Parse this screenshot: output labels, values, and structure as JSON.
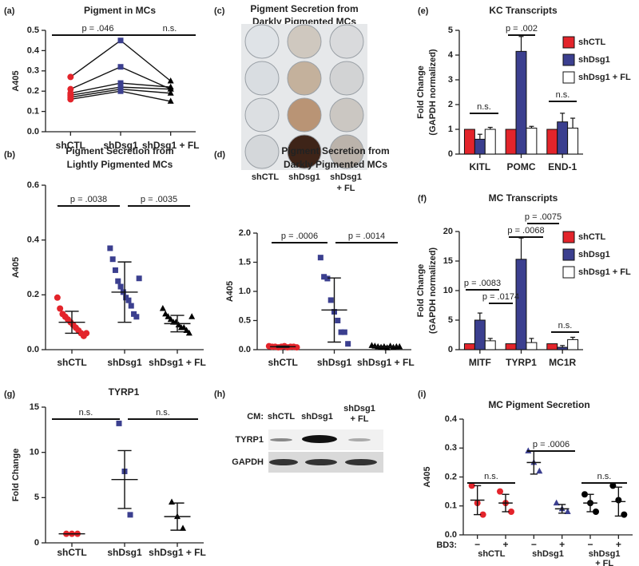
{
  "chart_data": [
    {
      "panel": "(a)",
      "type": "line",
      "title": [
        "Pigment in MCs"
      ],
      "ylabel": [
        "A405"
      ],
      "categories": [
        "shCTL",
        "shDsg1",
        "shDsg1 + FL"
      ],
      "colors": [
        "#e3242b",
        "#3b3f8f",
        "#000000"
      ],
      "markers": [
        "circle",
        "square",
        "triangle"
      ],
      "series": [
        {
          "values": [
            0.27,
            0.45,
            0.25
          ]
        },
        {
          "values": [
            0.21,
            0.32,
            0.21
          ]
        },
        {
          "values": [
            0.19,
            0.24,
            0.22
          ]
        },
        {
          "values": [
            0.18,
            0.22,
            0.21
          ]
        },
        {
          "values": [
            0.17,
            0.21,
            0.19
          ]
        },
        {
          "values": [
            0.16,
            0.2,
            0.15
          ]
        }
      ],
      "ylim": [
        0,
        0.5
      ],
      "yticks": [
        {
          "value": 0,
          "label": "0.0"
        },
        0.1,
        0.2,
        0.3,
        0.4,
        0.5
      ],
      "annotations": [
        "p = .046",
        "n.s."
      ]
    },
    {
      "panel": "(b)",
      "type": "dot",
      "title": [
        "Pigment Secretion from",
        "Lightly Pigmented MCs"
      ],
      "ylabel": [
        "A405"
      ],
      "categories": [
        "shCTL",
        "shDsg1",
        "shDsg1 + FL"
      ],
      "colors": [
        "#e3242b",
        "#3b3f8f",
        "#000000"
      ],
      "markers": [
        "circle",
        "square",
        "triangle"
      ],
      "points": [
        [
          0.19,
          0.15,
          0.13,
          0.12,
          0.11,
          0.1,
          0.09,
          0.08,
          0.07,
          0.06,
          0.05,
          0.06
        ],
        [
          0.37,
          0.33,
          0.29,
          0.25,
          0.23,
          0.21,
          0.19,
          0.18,
          0.16,
          0.13,
          0.12,
          0.26
        ],
        [
          0.15,
          0.13,
          0.12,
          0.11,
          0.1,
          0.1,
          0.09,
          0.08,
          0.08,
          0.07,
          0.06,
          0.12
        ]
      ],
      "means": [
        0.1,
        0.21,
        0.095
      ],
      "errors": [
        0.04,
        0.11,
        0.03
      ],
      "ylim": [
        0,
        0.6
      ],
      "yticks": [
        {
          "value": 0,
          "label": "0.0"
        },
        0.2,
        0.4,
        0.6
      ],
      "annotations": [
        "p = .0038",
        "p = .0035"
      ]
    },
    {
      "panel": "(d)",
      "type": "dot",
      "title": [
        "Pigment Secretion from",
        "Darkly Pigmented MCs"
      ],
      "ylabel": [
        "A405"
      ],
      "categories": [
        "shCTL",
        "shDsg1",
        "shDsg1 + FL"
      ],
      "colors": [
        "#e3242b",
        "#3b3f8f",
        "#000000"
      ],
      "markers": [
        "circle",
        "square",
        "triangle"
      ],
      "points": [
        [
          0.06,
          0.05,
          0.05,
          0.04,
          0.05,
          0.06,
          0.04,
          0.05,
          0.05,
          0.04
        ],
        [
          1.58,
          1.25,
          1.22,
          0.85,
          0.65,
          0.5,
          0.3,
          0.3,
          0.1
        ],
        [
          0.07,
          0.06,
          0.05,
          0.04,
          0.05,
          0.03,
          0.06,
          0.04,
          0.05,
          0.05
        ]
      ],
      "means": [
        0.05,
        0.68,
        0.05
      ],
      "errors": [
        0.01,
        0.55,
        0.01
      ],
      "ylim": [
        0,
        2
      ],
      "yticks": [
        {
          "value": 0,
          "label": "0.0"
        },
        0.5,
        {
          "value": 1,
          "label": "1.0"
        },
        1.5,
        {
          "value": 2,
          "label": "2.0"
        }
      ],
      "annotations": [
        "p = .0006",
        "p = .0014"
      ]
    },
    {
      "panel": "(e)",
      "type": "bar",
      "title": [
        "KC Transcripts"
      ],
      "ylabel": [
        "Fold Change",
        "(GAPDH normalized)"
      ],
      "categories": [
        "KITL",
        "POMC",
        "END-1"
      ],
      "series": [
        {
          "name": "shCTL",
          "color": "#e3242b",
          "values": [
            1,
            1,
            1
          ]
        },
        {
          "name": "shDsg1",
          "color": "#3b3f8f",
          "values": [
            0.6,
            4.15,
            1.3
          ],
          "errors": [
            0.2,
            0.6,
            0.35
          ]
        },
        {
          "name": "shDsg1 + FL",
          "color": "#ffffff",
          "values": [
            1.0,
            1.05,
            1.05
          ],
          "errors": [
            0.08,
            0.07,
            0.4
          ]
        }
      ],
      "ylim": [
        0,
        5
      ],
      "yticks": [
        0,
        1,
        2,
        3,
        4,
        5
      ],
      "legend": "top-right",
      "annotations": [
        "n.s.",
        "p = .002",
        "n.s."
      ]
    },
    {
      "panel": "(f)",
      "type": "bar",
      "title": [
        "MC Transcripts"
      ],
      "ylabel": [
        "Fold Change",
        "(GAPDH normalized)"
      ],
      "categories": [
        "MITF",
        "TYRP1",
        "MC1R"
      ],
      "series": [
        {
          "name": "shCTL",
          "color": "#e3242b",
          "values": [
            1,
            1,
            1
          ]
        },
        {
          "name": "shDsg1",
          "color": "#3b3f8f",
          "values": [
            5.0,
            15.3,
            0.4
          ],
          "errors": [
            1.2,
            3.6,
            0.3
          ]
        },
        {
          "name": "shDsg1 + FL",
          "color": "#ffffff",
          "values": [
            1.5,
            1.2,
            1.7
          ],
          "errors": [
            0.4,
            0.7,
            0.4
          ]
        }
      ],
      "ylim": [
        0,
        20
      ],
      "yticks": [
        0,
        5,
        10,
        15,
        20
      ],
      "legend": "top-right",
      "annotations": [
        "p = .0083",
        "p = .0174",
        "p = .0068",
        "p = .0075",
        "n.s."
      ]
    },
    {
      "panel": "(g)",
      "type": "dot",
      "title": [
        "TYRP1"
      ],
      "ylabel": [
        "Fold Change"
      ],
      "categories": [
        "shCTL",
        "shDsg1",
        "shDsg1 + FL"
      ],
      "colors": [
        "#e3242b",
        "#3b3f8f",
        "#000000"
      ],
      "markers": [
        "circle",
        "square",
        "triangle"
      ],
      "points": [
        [
          1,
          1,
          1
        ],
        [
          13.2,
          7.9,
          3.1
        ],
        [
          4.5,
          2.9,
          1.6
        ]
      ],
      "means": [
        1,
        7.0,
        2.9
      ],
      "errors": [
        0,
        3.2,
        1.5
      ],
      "ylim": [
        0,
        15
      ],
      "yticks": [
        0,
        5,
        10,
        15
      ],
      "annotations": [
        "n.s.",
        "n.s."
      ]
    },
    {
      "panel": "(i)",
      "type": "dot",
      "title": [
        "MC Pigment Secretion"
      ],
      "ylabel": [
        "A405"
      ],
      "x_prefix": "BD3:",
      "categories": [
        "−",
        "+",
        "−",
        "+",
        "−",
        "+"
      ],
      "groups": [
        [
          "shCTL"
        ],
        [
          "shDsg1"
        ],
        [
          "shDsg1",
          "+ FL"
        ]
      ],
      "colors": [
        "#e3242b",
        "#e3242b",
        "#3b3f8f",
        "#3b3f8f",
        "#000000",
        "#000000"
      ],
      "markers": [
        "circle",
        "circle",
        "triangle",
        "triangle",
        "circle",
        "circle"
      ],
      "points": [
        [
          0.17,
          0.11,
          0.07
        ],
        [
          0.15,
          0.11,
          0.08
        ],
        [
          0.29,
          0.25,
          0.22
        ],
        [
          0.11,
          0.09,
          0.08
        ],
        [
          0.14,
          0.11,
          0.08
        ],
        [
          0.17,
          0.12,
          0.07
        ]
      ],
      "means": [
        0.12,
        0.11,
        0.25,
        0.09,
        0.11,
        0.115
      ],
      "errors": [
        0.05,
        0.03,
        0.04,
        0.015,
        0.03,
        0.05
      ],
      "ylim": [
        0,
        0.4
      ],
      "yticks": [
        {
          "value": 0,
          "label": "0.0"
        },
        0.1,
        0.2,
        0.3,
        0.4
      ],
      "annotations": [
        "n.s.",
        "p = .0006",
        "n.s."
      ]
    }
  ],
  "images": [
    {
      "panel": "(c)",
      "title": [
        "Pigment Secretion from",
        "Darkly Pigmented MCs"
      ],
      "labels": [
        [
          "shCTL"
        ],
        [
          "shDsg1"
        ],
        [
          "shDsg1",
          "+ FL"
        ]
      ]
    },
    {
      "panel": "(h)",
      "row_prefix": "CM:",
      "lanes": [
        [
          "shCTL"
        ],
        [
          "shDsg1"
        ],
        [
          "shDsg1",
          "+ FL"
        ]
      ],
      "rows": [
        "TYRP1",
        "GAPDH"
      ]
    }
  ]
}
